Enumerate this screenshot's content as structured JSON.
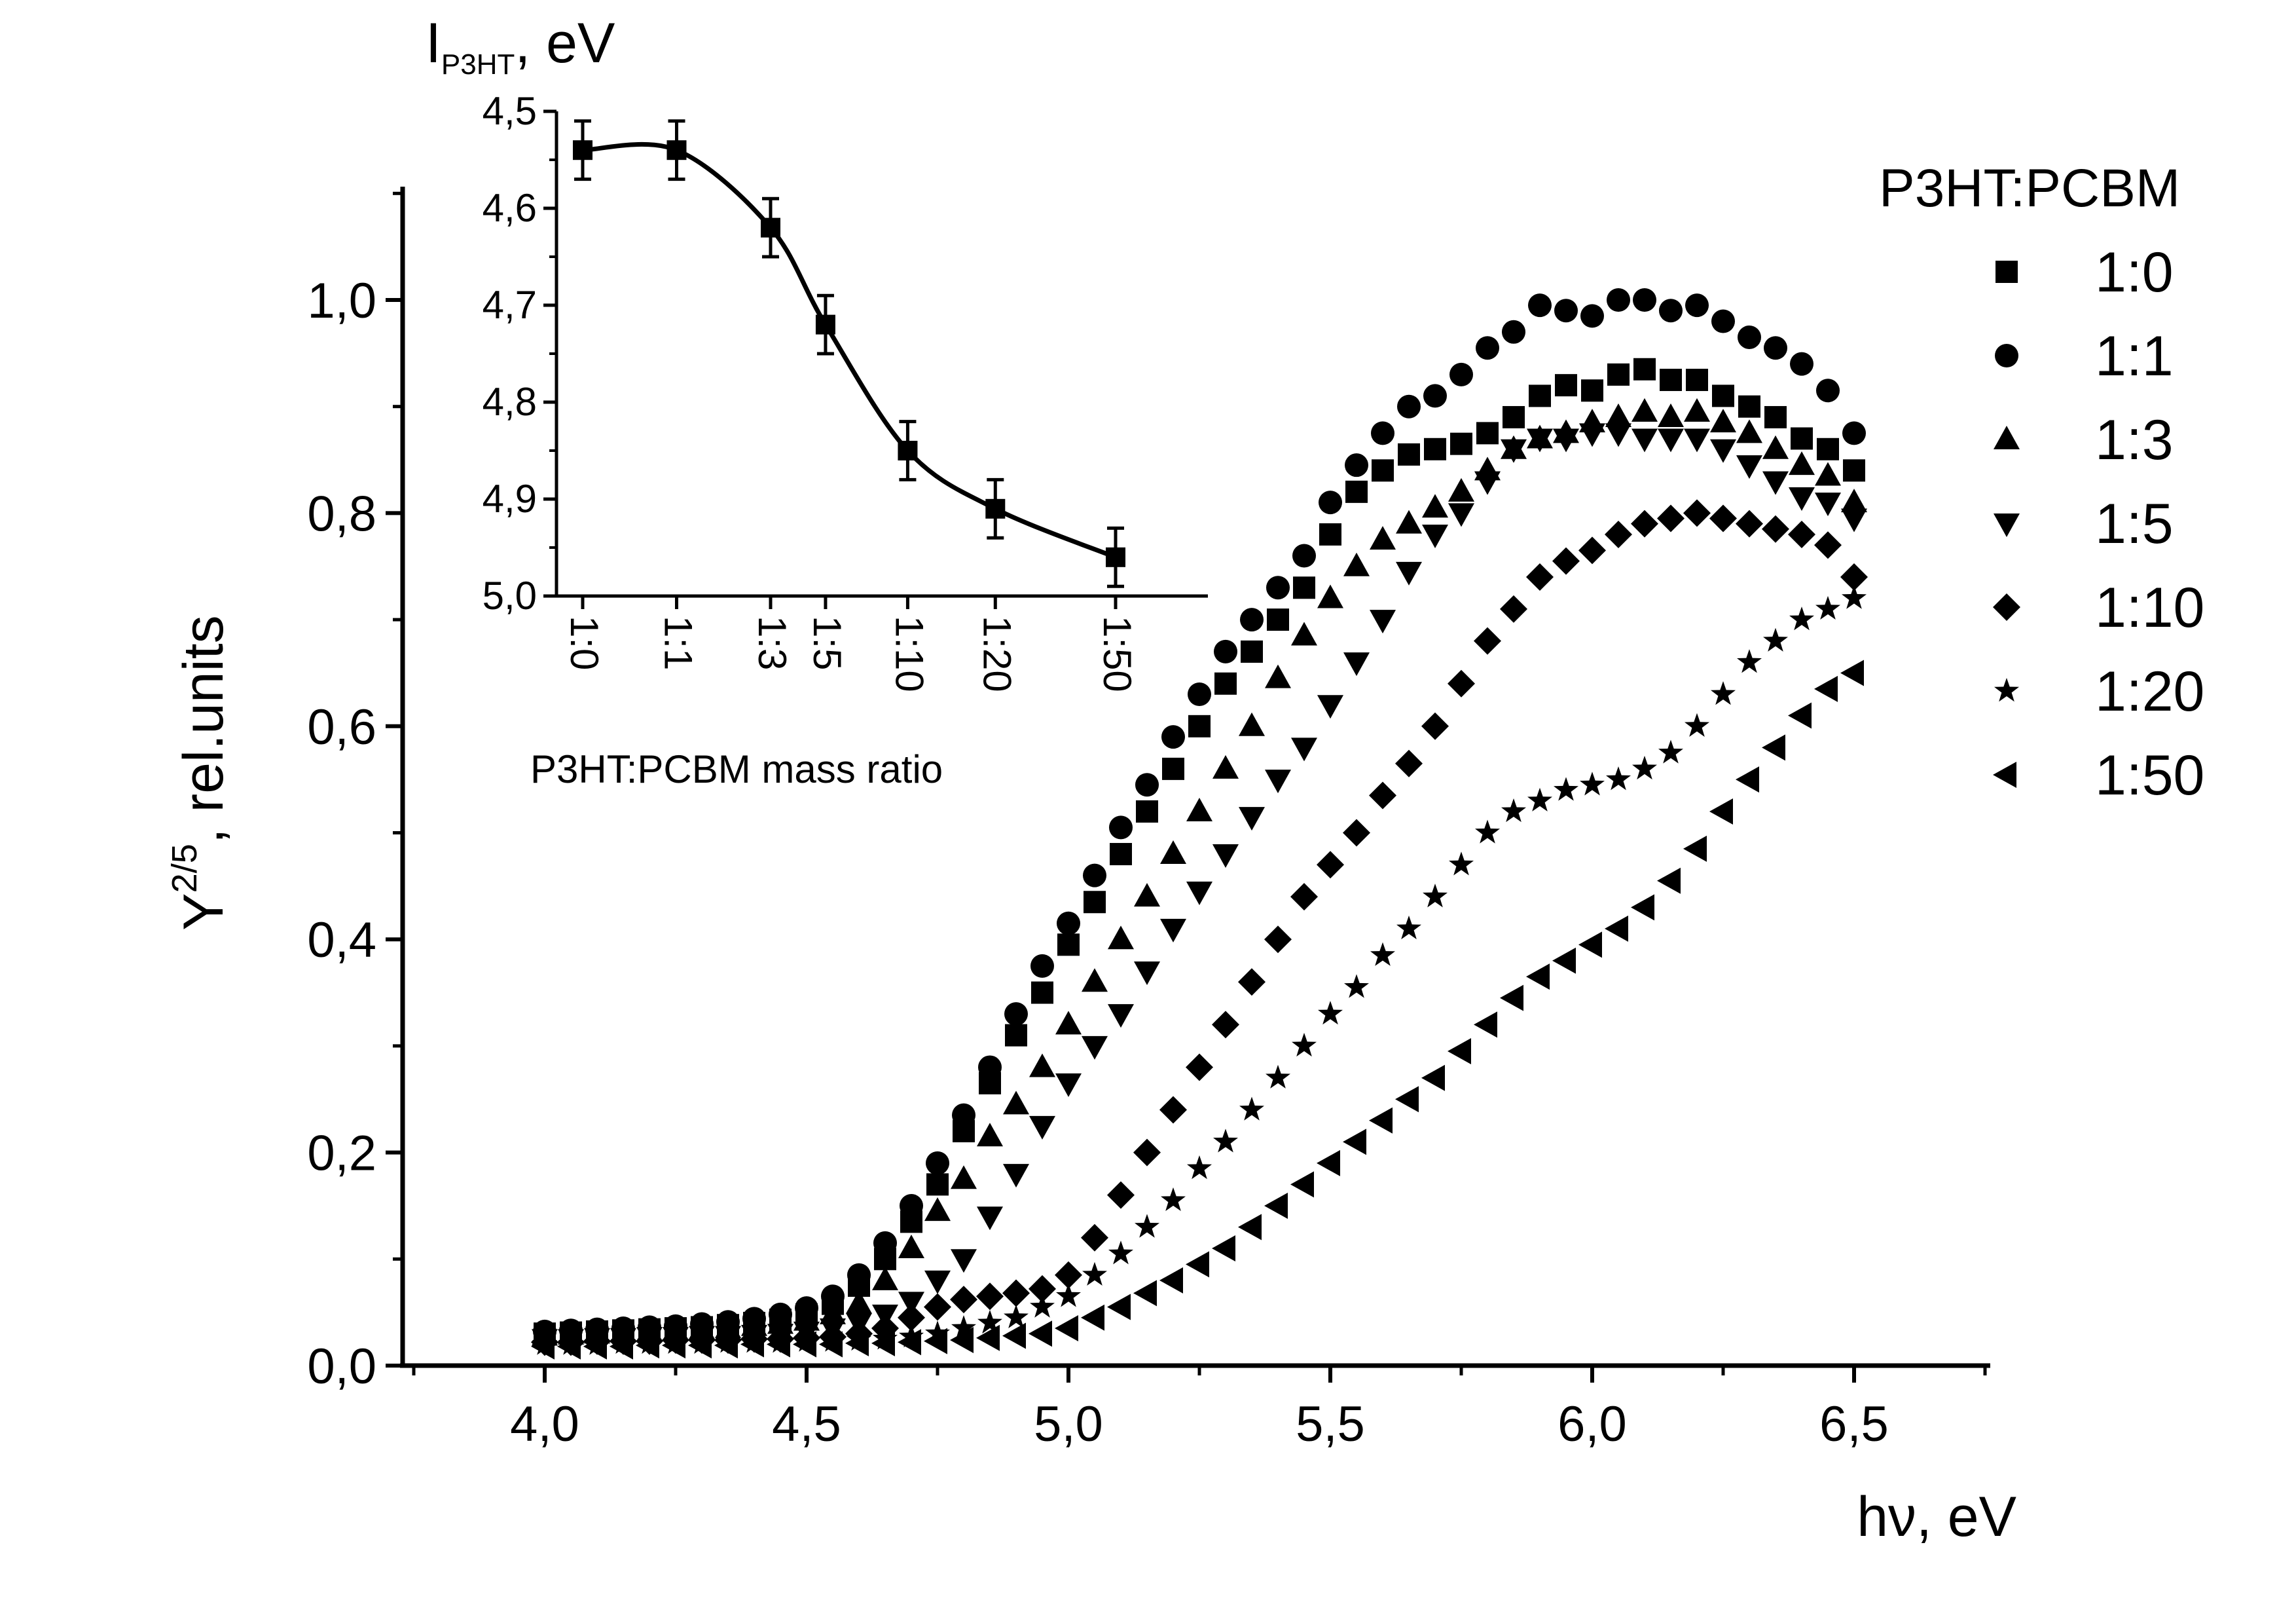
{
  "chart_data": {
    "type": "scatter",
    "xlabel": "hν, eV",
    "ylabel_main": "Y",
    "ylabel_sup": "2/5",
    "ylabel_rest": ", rel.units",
    "xlim": [
      3.78,
      6.75
    ],
    "ylim": [
      0.0,
      1.1
    ],
    "xticks": [
      4.0,
      4.5,
      5.0,
      5.5,
      6.0,
      6.5
    ],
    "xtick_labels": [
      "4,0",
      "4,5",
      "5,0",
      "5,5",
      "6,0",
      "6,5"
    ],
    "yticks": [
      0.0,
      0.2,
      0.4,
      0.6,
      0.8,
      1.0
    ],
    "ytick_labels": [
      "0,0",
      "0,2",
      "0,4",
      "0,6",
      "0,8",
      "1,0"
    ],
    "grid": false,
    "legend": {
      "title": "P3HT:PCBM",
      "placement": "right",
      "entries": [
        {
          "label": "1:0",
          "marker": "square"
        },
        {
          "label": "1:1",
          "marker": "circle"
        },
        {
          "label": "1:3",
          "marker": "triangle-up"
        },
        {
          "label": "1:5",
          "marker": "triangle-down"
        },
        {
          "label": "1:10",
          "marker": "diamond"
        },
        {
          "label": "1:20",
          "marker": "star"
        },
        {
          "label": "1:50",
          "marker": "triangle-left"
        }
      ]
    },
    "x": [
      4.0,
      4.05,
      4.1,
      4.15,
      4.2,
      4.25,
      4.3,
      4.35,
      4.4,
      4.45,
      4.5,
      4.55,
      4.6,
      4.65,
      4.7,
      4.75,
      4.8,
      4.85,
      4.9,
      4.95,
      5.0,
      5.05,
      5.1,
      5.15,
      5.2,
      5.25,
      5.3,
      5.35,
      5.4,
      5.45,
      5.5,
      5.55,
      5.6,
      5.65,
      5.7,
      5.75,
      5.8,
      5.85,
      5.9,
      5.95,
      6.0,
      6.05,
      6.1,
      6.15,
      6.2,
      6.25,
      6.3,
      6.35,
      6.4,
      6.45,
      6.5
    ],
    "series": [
      {
        "name": "1:0",
        "marker": "square",
        "values": [
          0.03,
          0.031,
          0.032,
          0.033,
          0.034,
          0.035,
          0.036,
          0.038,
          0.04,
          0.043,
          0.048,
          0.058,
          0.075,
          0.1,
          0.135,
          0.17,
          0.22,
          0.265,
          0.31,
          0.35,
          0.395,
          0.435,
          0.48,
          0.52,
          0.56,
          0.6,
          0.64,
          0.67,
          0.7,
          0.73,
          0.78,
          0.82,
          0.84,
          0.855,
          0.86,
          0.865,
          0.875,
          0.89,
          0.91,
          0.92,
          0.915,
          0.93,
          0.935,
          0.925,
          0.925,
          0.91,
          0.9,
          0.89,
          0.87,
          0.86,
          0.84
        ]
      },
      {
        "name": "1:1",
        "marker": "circle",
        "values": [
          0.032,
          0.033,
          0.034,
          0.035,
          0.036,
          0.037,
          0.039,
          0.041,
          0.044,
          0.048,
          0.054,
          0.065,
          0.085,
          0.115,
          0.15,
          0.19,
          0.235,
          0.28,
          0.33,
          0.375,
          0.415,
          0.46,
          0.505,
          0.545,
          0.59,
          0.63,
          0.67,
          0.7,
          0.73,
          0.76,
          0.81,
          0.845,
          0.875,
          0.9,
          0.91,
          0.93,
          0.955,
          0.97,
          0.995,
          0.99,
          0.985,
          1.0,
          1.0,
          0.99,
          0.995,
          0.98,
          0.965,
          0.955,
          0.94,
          0.915,
          0.875
        ]
      },
      {
        "name": "1:3",
        "marker": "triangle-up",
        "values": [
          0.028,
          0.029,
          0.03,
          0.031,
          0.032,
          0.033,
          0.034,
          0.035,
          0.037,
          0.039,
          0.042,
          0.048,
          0.058,
          0.08,
          0.11,
          0.145,
          0.175,
          0.215,
          0.245,
          0.28,
          0.32,
          0.36,
          0.4,
          0.44,
          0.48,
          0.52,
          0.56,
          0.6,
          0.645,
          0.685,
          0.72,
          0.75,
          0.775,
          0.79,
          0.805,
          0.82,
          0.84,
          0.86,
          0.87,
          0.875,
          0.885,
          0.89,
          0.895,
          0.89,
          0.895,
          0.885,
          0.875,
          0.86,
          0.845,
          0.835,
          0.81
        ]
      },
      {
        "name": "1:5",
        "marker": "triangle-down",
        "values": [
          0.025,
          0.025,
          0.026,
          0.026,
          0.027,
          0.027,
          0.028,
          0.028,
          0.029,
          0.03,
          0.032,
          0.035,
          0.04,
          0.048,
          0.06,
          0.08,
          0.1,
          0.14,
          0.18,
          0.225,
          0.265,
          0.3,
          0.33,
          0.37,
          0.41,
          0.445,
          0.48,
          0.515,
          0.55,
          0.58,
          0.62,
          0.66,
          0.7,
          0.745,
          0.78,
          0.8,
          0.83,
          0.86,
          0.87,
          0.87,
          0.875,
          0.875,
          0.87,
          0.87,
          0.87,
          0.86,
          0.845,
          0.83,
          0.815,
          0.81,
          0.795
        ]
      },
      {
        "name": "1:10",
        "marker": "diamond",
        "values": [
          0.022,
          0.022,
          0.023,
          0.023,
          0.023,
          0.024,
          0.024,
          0.024,
          0.025,
          0.025,
          0.026,
          0.027,
          0.03,
          0.035,
          0.045,
          0.055,
          0.062,
          0.065,
          0.068,
          0.072,
          0.085,
          0.12,
          0.16,
          0.2,
          0.24,
          0.28,
          0.32,
          0.36,
          0.4,
          0.44,
          0.47,
          0.5,
          0.535,
          0.565,
          0.6,
          0.64,
          0.68,
          0.71,
          0.74,
          0.755,
          0.765,
          0.78,
          0.79,
          0.795,
          0.8,
          0.795,
          0.79,
          0.785,
          0.78,
          0.77,
          0.74
        ]
      },
      {
        "name": "1:20",
        "marker": "star",
        "values": [
          0.02,
          0.02,
          0.02,
          0.021,
          0.021,
          0.021,
          0.021,
          0.022,
          0.022,
          0.022,
          0.023,
          0.023,
          0.024,
          0.025,
          0.027,
          0.03,
          0.035,
          0.04,
          0.045,
          0.055,
          0.065,
          0.085,
          0.105,
          0.13,
          0.155,
          0.185,
          0.21,
          0.24,
          0.27,
          0.3,
          0.33,
          0.355,
          0.385,
          0.41,
          0.44,
          0.47,
          0.5,
          0.52,
          0.53,
          0.54,
          0.545,
          0.55,
          0.56,
          0.575,
          0.6,
          0.63,
          0.66,
          0.68,
          0.7,
          0.71,
          0.72
        ]
      },
      {
        "name": "1:50",
        "marker": "triangle-left",
        "values": [
          0.018,
          0.018,
          0.018,
          0.018,
          0.019,
          0.019,
          0.019,
          0.019,
          0.02,
          0.02,
          0.02,
          0.02,
          0.021,
          0.021,
          0.022,
          0.023,
          0.024,
          0.026,
          0.028,
          0.03,
          0.035,
          0.045,
          0.055,
          0.068,
          0.08,
          0.095,
          0.11,
          0.13,
          0.15,
          0.17,
          0.19,
          0.21,
          0.23,
          0.25,
          0.27,
          0.295,
          0.32,
          0.345,
          0.365,
          0.38,
          0.395,
          0.41,
          0.43,
          0.455,
          0.485,
          0.52,
          0.55,
          0.58,
          0.61,
          0.635,
          0.65
        ]
      }
    ],
    "inset": {
      "type": "line+scatter",
      "ylabel_main": "I",
      "ylabel_sub": "P3HT",
      "ylabel_rest": ", eV",
      "xlabel": "P3HT:PCBM mass ratio",
      "ylim": [
        4.5,
        5.0
      ],
      "y_inverted": true,
      "yticks": [
        4.5,
        4.6,
        4.7,
        4.8,
        4.9,
        5.0
      ],
      "ytick_labels": [
        "4,5",
        "4,6",
        "4,7",
        "4,8",
        "4,9",
        "5,0"
      ],
      "categories": [
        "1:0",
        "1:1",
        "1:3",
        "1:5",
        "1:10",
        "1:20",
        "1:50"
      ],
      "values": [
        4.54,
        4.54,
        4.62,
        4.72,
        4.85,
        4.91,
        4.96
      ],
      "errors": [
        0.03,
        0.03,
        0.03,
        0.03,
        0.03,
        0.03,
        0.03
      ]
    }
  }
}
